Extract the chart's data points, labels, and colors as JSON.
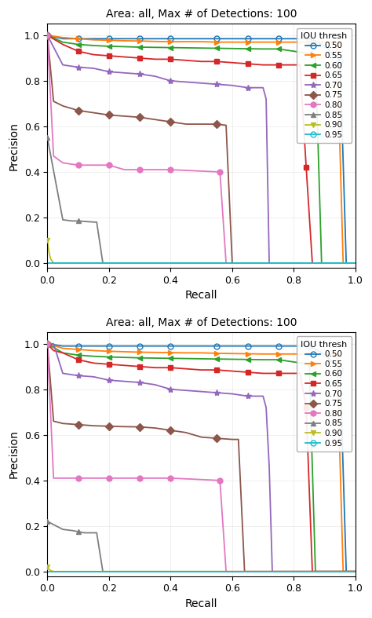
{
  "title": "Area: all, Max # of Detections: 100",
  "xlabel": "Recall",
  "ylabel": "Precision",
  "colors": {
    "0.50": "#1f77b4",
    "0.55": "#ff7f0e",
    "0.60": "#2ca02c",
    "0.65": "#d62728",
    "0.70": "#9467bd",
    "0.75": "#8c564b",
    "0.80": "#e377c2",
    "0.85": "#7f7f7f",
    "0.90": "#bcbd22",
    "0.95": "#17becf"
  },
  "markers": {
    "0.50": "o",
    "0.55": ">",
    "0.60": "<",
    "0.65": "s",
    "0.70": "*",
    "0.75": "D",
    "0.80": "o",
    "0.85": "^",
    "0.90": "v",
    "0.95": "o"
  },
  "marker_sizes": {
    "0.50": 5,
    "0.55": 5,
    "0.60": 5,
    "0.65": 5,
    "0.70": 6,
    "0.75": 5,
    "0.80": 5,
    "0.85": 5,
    "0.90": 5,
    "0.95": 5
  },
  "labels_order": [
    "0.50",
    "0.55",
    "0.60",
    "0.65",
    "0.70",
    "0.75",
    "0.80",
    "0.85",
    "0.90",
    "0.95"
  ],
  "curves_top": {
    "0.50": {
      "recall": [
        0.0,
        0.0,
        0.05,
        0.1,
        0.15,
        0.2,
        0.25,
        0.3,
        0.35,
        0.4,
        0.45,
        0.5,
        0.55,
        0.6,
        0.65,
        0.7,
        0.75,
        0.8,
        0.85,
        0.87,
        0.89,
        0.91,
        0.93,
        0.95,
        0.97,
        0.99,
        1.0
      ],
      "precision": [
        1.0,
        1.0,
        0.985,
        0.985,
        0.985,
        0.985,
        0.985,
        0.985,
        0.985,
        0.985,
        0.985,
        0.985,
        0.985,
        0.985,
        0.985,
        0.985,
        0.985,
        0.985,
        0.985,
        0.975,
        0.96,
        0.94,
        0.91,
        0.89,
        0.0,
        0.0,
        0.0
      ]
    },
    "0.55": {
      "recall": [
        0.0,
        0.0,
        0.05,
        0.1,
        0.15,
        0.2,
        0.25,
        0.3,
        0.35,
        0.4,
        0.45,
        0.5,
        0.55,
        0.6,
        0.65,
        0.7,
        0.75,
        0.8,
        0.85,
        0.9,
        0.92,
        0.94,
        0.96,
        0.98,
        1.0
      ],
      "precision": [
        1.0,
        1.0,
        0.99,
        0.985,
        0.98,
        0.978,
        0.976,
        0.975,
        0.973,
        0.972,
        0.972,
        0.972,
        0.97,
        0.97,
        0.97,
        0.97,
        0.97,
        0.97,
        0.97,
        0.97,
        0.97,
        0.965,
        0.0,
        0.0,
        0.0
      ]
    },
    "0.60": {
      "recall": [
        0.0,
        0.0,
        0.05,
        0.1,
        0.15,
        0.2,
        0.25,
        0.3,
        0.35,
        0.4,
        0.45,
        0.5,
        0.55,
        0.6,
        0.65,
        0.7,
        0.75,
        0.8,
        0.85,
        0.87,
        0.89,
        0.91,
        0.93,
        1.0
      ],
      "precision": [
        1.0,
        1.0,
        0.97,
        0.96,
        0.955,
        0.952,
        0.95,
        0.948,
        0.947,
        0.946,
        0.945,
        0.944,
        0.943,
        0.942,
        0.941,
        0.94,
        0.94,
        0.93,
        0.92,
        0.91,
        0.0,
        0.0,
        0.0,
        0.0
      ]
    },
    "0.65": {
      "recall": [
        0.0,
        0.0,
        0.05,
        0.1,
        0.15,
        0.2,
        0.25,
        0.3,
        0.35,
        0.4,
        0.45,
        0.5,
        0.55,
        0.6,
        0.65,
        0.7,
        0.75,
        0.8,
        0.82,
        0.84,
        0.86,
        1.0
      ],
      "precision": [
        1.0,
        1.0,
        0.96,
        0.93,
        0.915,
        0.91,
        0.905,
        0.9,
        0.895,
        0.895,
        0.89,
        0.885,
        0.885,
        0.88,
        0.875,
        0.87,
        0.87,
        0.87,
        0.87,
        0.42,
        0.0,
        0.0
      ]
    },
    "0.70": {
      "recall": [
        0.0,
        0.0,
        0.05,
        0.1,
        0.15,
        0.2,
        0.25,
        0.3,
        0.35,
        0.4,
        0.45,
        0.5,
        0.55,
        0.6,
        0.65,
        0.7,
        0.71,
        0.72,
        1.0
      ],
      "precision": [
        1.0,
        1.0,
        0.87,
        0.86,
        0.855,
        0.84,
        0.835,
        0.83,
        0.82,
        0.8,
        0.795,
        0.79,
        0.785,
        0.78,
        0.77,
        0.77,
        0.72,
        0.0,
        0.0
      ]
    },
    "0.75": {
      "recall": [
        0.0,
        0.02,
        0.05,
        0.1,
        0.15,
        0.2,
        0.25,
        0.3,
        0.35,
        0.4,
        0.45,
        0.5,
        0.55,
        0.58,
        0.6,
        1.0
      ],
      "precision": [
        1.0,
        0.71,
        0.69,
        0.67,
        0.66,
        0.65,
        0.645,
        0.64,
        0.63,
        0.62,
        0.61,
        0.61,
        0.61,
        0.605,
        0.0,
        0.0
      ]
    },
    "0.80": {
      "recall": [
        0.0,
        0.02,
        0.05,
        0.1,
        0.15,
        0.2,
        0.25,
        0.3,
        0.38,
        0.4,
        0.56,
        0.58,
        1.0
      ],
      "precision": [
        1.0,
        0.47,
        0.44,
        0.43,
        0.43,
        0.43,
        0.41,
        0.41,
        0.41,
        0.41,
        0.4,
        0.0,
        0.0
      ]
    },
    "0.85": {
      "recall": [
        0.0,
        0.0,
        0.05,
        0.08,
        0.1,
        0.15,
        0.16,
        0.18,
        1.0
      ],
      "precision": [
        0.55,
        0.55,
        0.19,
        0.185,
        0.185,
        0.18,
        0.18,
        0.0,
        0.0
      ]
    },
    "0.90": {
      "recall": [
        0.0,
        0.005,
        0.01,
        0.015,
        0.02,
        1.0
      ],
      "precision": [
        0.1,
        0.05,
        0.02,
        0.01,
        0.0,
        0.0
      ]
    },
    "0.95": {
      "recall": [
        0.0,
        1.0
      ],
      "precision": [
        0.0,
        0.0
      ]
    }
  },
  "curves_bot": {
    "0.50": {
      "recall": [
        0.0,
        0.0,
        0.05,
        0.1,
        0.15,
        0.2,
        0.25,
        0.3,
        0.35,
        0.4,
        0.45,
        0.5,
        0.55,
        0.6,
        0.65,
        0.7,
        0.75,
        0.8,
        0.85,
        0.87,
        0.89,
        0.91,
        0.93,
        0.95,
        0.97,
        0.99,
        1.0
      ],
      "precision": [
        1.0,
        1.0,
        0.99,
        0.99,
        0.99,
        0.99,
        0.99,
        0.99,
        0.99,
        0.99,
        0.99,
        0.99,
        0.99,
        0.99,
        0.99,
        0.99,
        0.99,
        0.99,
        0.99,
        0.975,
        0.96,
        0.94,
        0.91,
        0.89,
        0.0,
        0.0,
        0.0
      ]
    },
    "0.55": {
      "recall": [
        0.0,
        0.0,
        0.05,
        0.1,
        0.15,
        0.2,
        0.25,
        0.3,
        0.35,
        0.4,
        0.45,
        0.5,
        0.55,
        0.6,
        0.65,
        0.7,
        0.75,
        0.8,
        0.85,
        0.9,
        0.92,
        0.94,
        0.96,
        0.98,
        1.0
      ],
      "precision": [
        1.0,
        1.0,
        0.98,
        0.975,
        0.97,
        0.967,
        0.965,
        0.963,
        0.962,
        0.961,
        0.96,
        0.96,
        0.958,
        0.957,
        0.956,
        0.955,
        0.955,
        0.955,
        0.955,
        0.955,
        0.955,
        0.95,
        0.0,
        0.0,
        0.0
      ]
    },
    "0.60": {
      "recall": [
        0.0,
        0.0,
        0.05,
        0.1,
        0.15,
        0.2,
        0.25,
        0.3,
        0.35,
        0.4,
        0.45,
        0.5,
        0.55,
        0.6,
        0.65,
        0.7,
        0.75,
        0.8,
        0.85,
        0.87,
        0.89,
        0.91,
        0.93,
        1.0
      ],
      "precision": [
        1.0,
        1.0,
        0.96,
        0.95,
        0.945,
        0.942,
        0.94,
        0.938,
        0.937,
        0.936,
        0.935,
        0.934,
        0.933,
        0.932,
        0.931,
        0.93,
        0.93,
        0.92,
        0.91,
        0.0,
        0.0,
        0.0,
        0.0,
        0.0
      ]
    },
    "0.65": {
      "recall": [
        0.0,
        0.02,
        0.05,
        0.1,
        0.15,
        0.2,
        0.25,
        0.3,
        0.35,
        0.4,
        0.45,
        0.5,
        0.55,
        0.6,
        0.65,
        0.7,
        0.75,
        0.8,
        0.82,
        0.84,
        0.86,
        0.88,
        1.0
      ],
      "precision": [
        1.0,
        0.97,
        0.96,
        0.93,
        0.915,
        0.91,
        0.905,
        0.9,
        0.895,
        0.895,
        0.89,
        0.885,
        0.885,
        0.88,
        0.875,
        0.87,
        0.87,
        0.87,
        0.87,
        0.72,
        0.0,
        0.0,
        0.0
      ]
    },
    "0.70": {
      "recall": [
        0.0,
        0.02,
        0.05,
        0.1,
        0.15,
        0.2,
        0.25,
        0.3,
        0.35,
        0.4,
        0.45,
        0.5,
        0.55,
        0.6,
        0.65,
        0.7,
        0.71,
        0.72,
        0.73,
        0.75,
        1.0
      ],
      "precision": [
        1.0,
        1.0,
        0.87,
        0.86,
        0.855,
        0.84,
        0.835,
        0.83,
        0.82,
        0.8,
        0.795,
        0.79,
        0.785,
        0.78,
        0.77,
        0.77,
        0.72,
        0.46,
        0.0,
        0.0,
        0.0
      ]
    },
    "0.75": {
      "recall": [
        0.0,
        0.02,
        0.05,
        0.1,
        0.15,
        0.2,
        0.25,
        0.3,
        0.35,
        0.4,
        0.45,
        0.5,
        0.55,
        0.6,
        0.62,
        0.64,
        1.0
      ],
      "precision": [
        1.0,
        0.66,
        0.65,
        0.645,
        0.64,
        0.638,
        0.636,
        0.635,
        0.63,
        0.62,
        0.61,
        0.59,
        0.585,
        0.58,
        0.58,
        0.0,
        0.0
      ]
    },
    "0.80": {
      "recall": [
        0.0,
        0.02,
        0.05,
        0.1,
        0.15,
        0.2,
        0.25,
        0.3,
        0.38,
        0.4,
        0.56,
        0.58,
        1.0
      ],
      "precision": [
        1.0,
        0.41,
        0.41,
        0.41,
        0.41,
        0.41,
        0.41,
        0.41,
        0.41,
        0.41,
        0.4,
        0.0,
        0.0
      ]
    },
    "0.85": {
      "recall": [
        0.0,
        0.0,
        0.05,
        0.08,
        0.1,
        0.12,
        0.14,
        0.16,
        0.18,
        1.0
      ],
      "precision": [
        0.22,
        0.22,
        0.185,
        0.18,
        0.175,
        0.17,
        0.17,
        0.17,
        0.0,
        0.0
      ]
    },
    "0.90": {
      "recall": [
        0.0,
        0.005,
        0.01,
        0.015,
        0.02,
        1.0
      ],
      "precision": [
        0.02,
        0.01,
        0.005,
        0.002,
        0.0,
        0.0
      ]
    },
    "0.95": {
      "recall": [
        0.0,
        1.0
      ],
      "precision": [
        0.0,
        0.0
      ]
    }
  }
}
